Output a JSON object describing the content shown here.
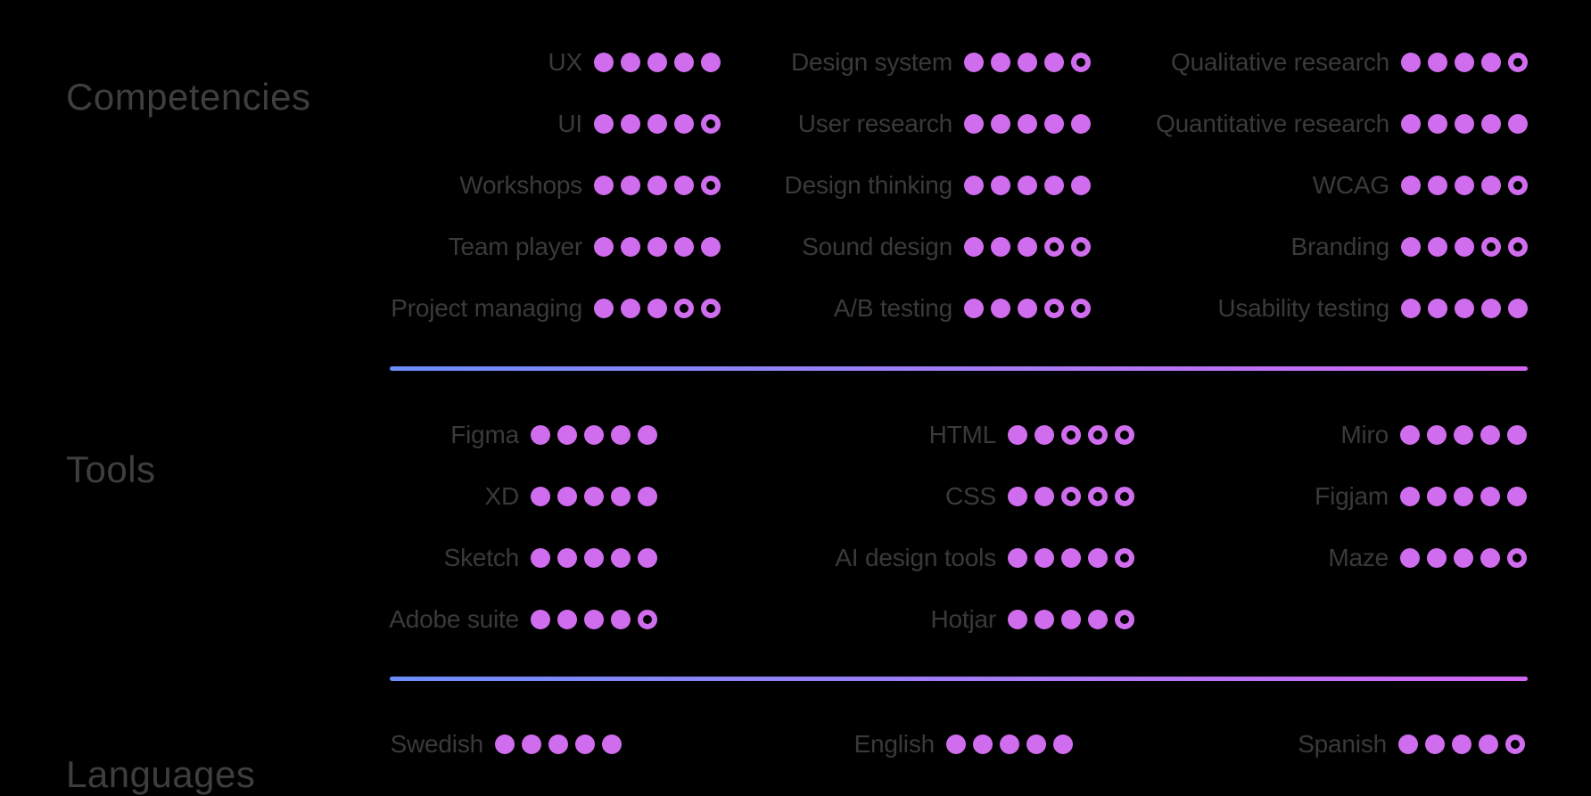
{
  "page": {
    "background": "#000000"
  },
  "colors": {
    "dot": "#d06dee",
    "divider_gradient_start": "#6c8efa",
    "divider_gradient_end": "#d365f2",
    "section_title": "#3e3e41",
    "skill_label": "#3a3a3d"
  },
  "rating_scale": {
    "max": 5
  },
  "sections": [
    {
      "title": "Competencies",
      "columns": [
        {
          "skills": [
            {
              "name": "UX",
              "rating": 5
            },
            {
              "name": "UI",
              "rating": 4
            },
            {
              "name": "Workshops",
              "rating": 4
            },
            {
              "name": "Team player",
              "rating": 5
            },
            {
              "name": "Project managing",
              "rating": 3
            }
          ]
        },
        {
          "skills": [
            {
              "name": "Design system",
              "rating": 4
            },
            {
              "name": "User research",
              "rating": 5
            },
            {
              "name": "Design thinking",
              "rating": 5
            },
            {
              "name": "Sound design",
              "rating": 3
            },
            {
              "name": "A/B testing",
              "rating": 3
            }
          ]
        },
        {
          "skills": [
            {
              "name": "Qualitative research",
              "rating": 4
            },
            {
              "name": "Quantitative research",
              "rating": 5
            },
            {
              "name": "WCAG",
              "rating": 4
            },
            {
              "name": "Branding",
              "rating": 3
            },
            {
              "name": "Usability testing",
              "rating": 5
            }
          ]
        }
      ]
    },
    {
      "title": "Tools",
      "columns": [
        {
          "skills": [
            {
              "name": "Figma",
              "rating": 5
            },
            {
              "name": "XD",
              "rating": 5
            },
            {
              "name": "Sketch",
              "rating": 5
            },
            {
              "name": "Adobe suite",
              "rating": 4
            }
          ]
        },
        {
          "skills": [
            {
              "name": "HTML",
              "rating": 2
            },
            {
              "name": "CSS",
              "rating": 2
            },
            {
              "name": "AI design tools",
              "rating": 4
            },
            {
              "name": "Hotjar",
              "rating": 4
            }
          ]
        },
        {
          "skills": [
            {
              "name": "Miro",
              "rating": 5
            },
            {
              "name": "Figjam",
              "rating": 5
            },
            {
              "name": "Maze",
              "rating": 4
            }
          ]
        }
      ]
    },
    {
      "title": "Languages",
      "columns": [
        {
          "skills": [
            {
              "name": "Swedish",
              "rating": 5
            }
          ]
        },
        {
          "skills": [
            {
              "name": "English",
              "rating": 5
            }
          ]
        },
        {
          "skills": [
            {
              "name": "Spanish",
              "rating": 4
            }
          ]
        }
      ]
    }
  ]
}
